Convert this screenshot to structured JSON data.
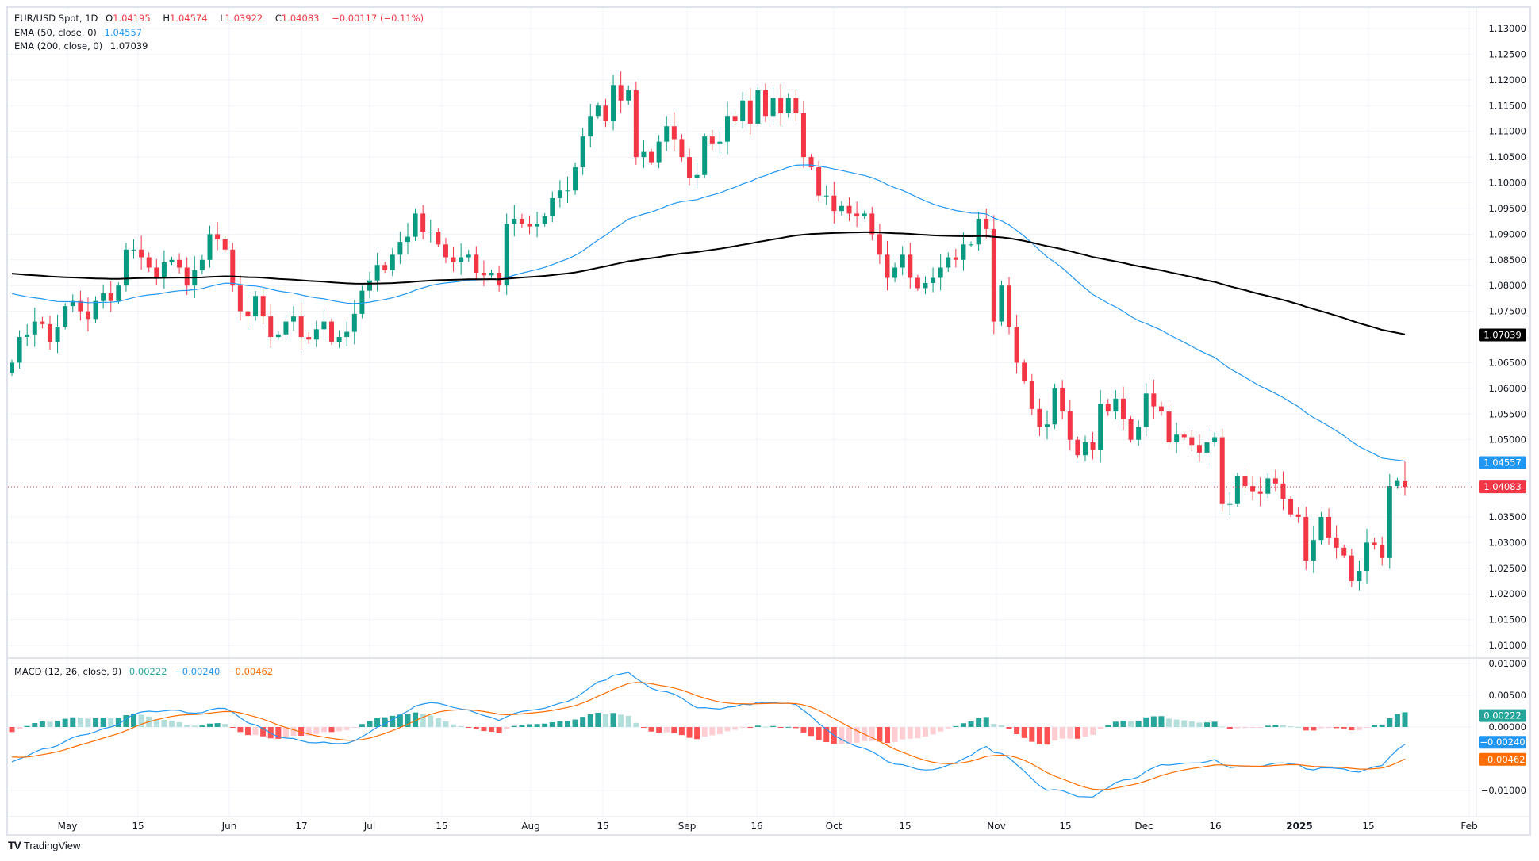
{
  "legend": {
    "symbol": "EUR/USD Spot, 1D",
    "o_label": "O",
    "o": "1.04195",
    "h_label": "H",
    "h": "1.04574",
    "l_label": "L",
    "l": "1.03922",
    "c_label": "C",
    "c": "1.04083",
    "change": "−0.00117 (−0.11%)",
    "ema50_label": "EMA (50, close, 0)",
    "ema50_value": "1.04557",
    "ema200_label": "EMA (200, close, 0)",
    "ema200_value": "1.07039",
    "macd_label": "MACD (12, 26, close, 9)",
    "macd_hist": "0.00222",
    "macd_line": "−0.00240",
    "macd_signal": "−0.00462"
  },
  "colors": {
    "up": "#089981",
    "down": "#f23645",
    "ema50": "#2196f3",
    "ema200": "#000000",
    "macd": "#2196f3",
    "signal": "#ff6d00",
    "hist_up_strong": "#26a69a",
    "hist_up_weak": "#b2dfdb",
    "hist_down_strong": "#ff5252",
    "hist_down_weak": "#ffcdd2"
  },
  "chart_data": [
    {
      "type": "candlestick",
      "title": "EUR/USD Spot, 1D",
      "ylim": [
        1.0075,
        1.1325
      ],
      "y_ticks": [
        "1.13000",
        "1.12500",
        "1.12000",
        "1.11500",
        "1.11000",
        "1.10500",
        "1.10000",
        "1.09500",
        "1.09000",
        "1.08500",
        "1.08000",
        "1.07500",
        "1.06500",
        "1.06000",
        "1.05500",
        "1.05000",
        "1.03500",
        "1.03000",
        "1.02500",
        "1.02000",
        "1.01500",
        "1.01000"
      ],
      "x_ticks": [
        "May",
        "15",
        "Jun",
        "17",
        "Jul",
        "15",
        "Aug",
        "15",
        "Sep",
        "16",
        "Oct",
        "15",
        "Nov",
        "15",
        "Dec",
        "16",
        "2025",
        "15",
        "Feb"
      ],
      "first_open": 1.063,
      "last_candle": {
        "open": 1.04195,
        "high": 1.04574,
        "low": 1.03922,
        "close": 1.04083
      },
      "closes": [
        1.065,
        1.07,
        1.0705,
        1.073,
        1.0725,
        1.069,
        1.072,
        1.076,
        1.077,
        1.075,
        1.0735,
        1.077,
        1.0785,
        1.077,
        1.08,
        1.087,
        1.087,
        1.0855,
        1.0835,
        1.0815,
        1.0845,
        1.085,
        1.0835,
        1.08,
        1.083,
        1.085,
        1.09,
        1.089,
        1.087,
        1.08,
        1.075,
        1.074,
        1.078,
        1.074,
        1.07,
        1.0705,
        1.073,
        1.074,
        1.07,
        1.0695,
        1.0715,
        1.073,
        1.069,
        1.07,
        1.071,
        1.0745,
        1.079,
        1.081,
        1.084,
        1.083,
        1.086,
        1.0885,
        1.0895,
        1.094,
        1.0905,
        1.0905,
        1.088,
        1.0855,
        1.0845,
        1.0855,
        1.086,
        1.0825,
        1.082,
        1.0825,
        1.08,
        1.092,
        1.093,
        1.092,
        1.0915,
        1.092,
        1.0935,
        1.097,
        1.0985,
        1.0985,
        1.103,
        1.109,
        1.113,
        1.115,
        1.112,
        1.119,
        1.116,
        1.118,
        1.105,
        1.106,
        1.104,
        1.108,
        1.111,
        1.1085,
        1.105,
        1.101,
        1.1015,
        1.109,
        1.1075,
        1.108,
        1.113,
        1.112,
        1.116,
        1.1115,
        1.118,
        1.113,
        1.1165,
        1.1135,
        1.1165,
        1.1135,
        1.105,
        1.103,
        1.0975,
        1.0975,
        1.0945,
        1.0955,
        1.094,
        1.0935,
        1.094,
        1.09,
        1.086,
        1.0815,
        1.0835,
        1.086,
        1.0815,
        1.0795,
        1.0805,
        1.0815,
        1.0835,
        1.0855,
        1.085,
        1.088,
        1.088,
        1.093,
        1.091,
        1.073,
        1.08,
        1.072,
        1.065,
        1.0615,
        1.056,
        1.0525,
        1.053,
        1.06,
        1.0555,
        1.05,
        1.047,
        1.0495,
        1.048,
        1.057,
        1.0555,
        1.058,
        1.054,
        1.05,
        1.0525,
        1.059,
        1.0565,
        1.0555,
        1.0495,
        1.051,
        1.0505,
        1.049,
        1.0475,
        1.0495,
        1.0505,
        1.0375,
        1.0375,
        1.043,
        1.041,
        1.04,
        1.0395,
        1.0425,
        1.0415,
        1.0385,
        1.0355,
        1.035,
        1.0265,
        1.0305,
        1.035,
        1.031,
        1.029,
        1.0275,
        1.0225,
        1.0245,
        1.03,
        1.0295,
        1.027,
        1.041,
        1.042,
        1.04083
      ],
      "series": [
        {
          "name": "EMA (50, close, 0)",
          "last": 1.04557
        },
        {
          "name": "EMA (200, close, 0)",
          "last": 1.07039
        }
      ],
      "price_badges": [
        "1.07039",
        "1.04557",
        "1.04083"
      ]
    },
    {
      "type": "bar+line",
      "title": "MACD (12, 26, close, 9)",
      "ylim": [
        -0.014,
        0.011
      ],
      "y_ticks": [
        "0.01000",
        "0.00500",
        "0.00000",
        "−0.01000"
      ],
      "last": {
        "histogram": 0.00222,
        "macd": -0.0024,
        "signal": -0.00462
      },
      "badges": [
        "0.00222",
        "−0.00240",
        "−0.00462"
      ]
    }
  ],
  "footer": {
    "brand": "TradingView"
  }
}
